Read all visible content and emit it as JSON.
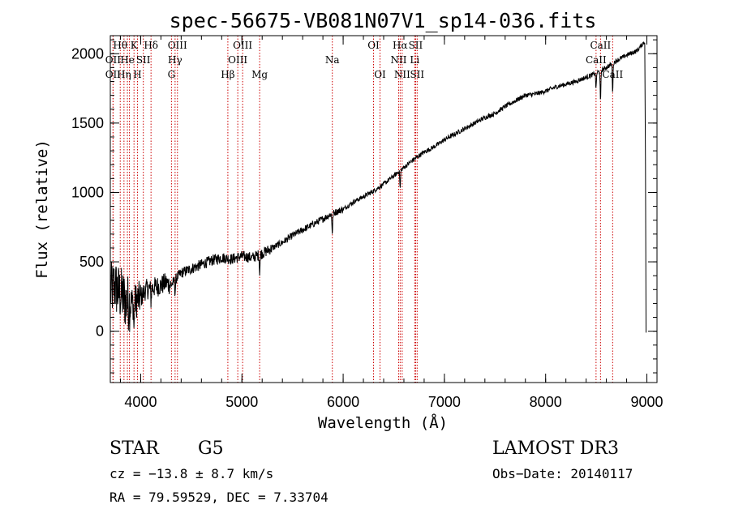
{
  "chart_data": {
    "type": "line",
    "title": "spec-56675-VB081N07V1_sp14-036.fits",
    "xlabel": "Wavelength (Å)",
    "ylabel": "Flux (relative)",
    "xlim": [
      3700,
      9100
    ],
    "ylim": [
      -370,
      2130
    ],
    "x_ticks": [
      4000,
      5000,
      6000,
      7000,
      8000,
      9000
    ],
    "x_tick_labels": [
      "4000",
      "5000",
      "6000",
      "7000",
      "8000",
      "9000"
    ],
    "y_ticks": [
      0,
      500,
      1000,
      1500,
      2000
    ],
    "y_tick_labels": [
      "0",
      "500",
      "1000",
      "1500",
      "2000"
    ],
    "x_minor_step": 200,
    "y_minor_step": 100,
    "series": [
      {
        "name": "Flux",
        "x": [
          3700,
          3740,
          3780,
          3820,
          3860,
          3900,
          3950,
          4000,
          4050,
          4100,
          4150,
          4200,
          4250,
          4300,
          4350,
          4400,
          4500,
          4600,
          4700,
          4800,
          4900,
          5000,
          5100,
          5200,
          5300,
          5400,
          5500,
          5600,
          5700,
          5800,
          5900,
          6000,
          6100,
          6200,
          6300,
          6400,
          6500,
          6600,
          6700,
          6800,
          6900,
          7000,
          7100,
          7200,
          7300,
          7400,
          7500,
          7600,
          7700,
          7800,
          7900,
          8000,
          8100,
          8200,
          8300,
          8400,
          8500,
          8600,
          8700,
          8800,
          8900,
          8980
        ],
        "y": [
          280,
          330,
          280,
          250,
          210,
          200,
          220,
          240,
          300,
          310,
          320,
          330,
          350,
          330,
          380,
          420,
          450,
          480,
          510,
          530,
          520,
          540,
          530,
          560,
          600,
          640,
          690,
          730,
          770,
          810,
          850,
          880,
          930,
          970,
          1010,
          1060,
          1120,
          1180,
          1240,
          1290,
          1330,
          1380,
          1420,
          1460,
          1500,
          1540,
          1570,
          1620,
          1660,
          1700,
          1710,
          1730,
          1760,
          1780,
          1800,
          1830,
          1860,
          1900,
          1950,
          1990,
          2020,
          2090
        ]
      }
    ],
    "absorption_features": [
      {
        "x": 3934,
        "depth": 200
      },
      {
        "x": 4102,
        "depth": 90
      },
      {
        "x": 4340,
        "depth": 90
      },
      {
        "x": 5175,
        "depth": 120
      },
      {
        "x": 5893,
        "depth": 140
      },
      {
        "x": 6563,
        "depth": 130
      },
      {
        "x": 8498,
        "depth": 110
      },
      {
        "x": 8542,
        "depth": 230
      },
      {
        "x": 8662,
        "depth": 200
      }
    ],
    "spectral_lines": [
      {
        "x": 3727,
        "label": "OII",
        "row": 2
      },
      {
        "x": 3727,
        "label": "OII",
        "row": 1
      },
      {
        "x": 3798,
        "label": "Hθ",
        "row": 0
      },
      {
        "x": 3835,
        "label": "Hη",
        "row": 2
      },
      {
        "x": 3869,
        "label": "He",
        "row": 1
      },
      {
        "x": 3889,
        "label": "",
        "row": -1
      },
      {
        "x": 3934,
        "label": "K",
        "row": 0
      },
      {
        "x": 3968,
        "label": "H",
        "row": 2
      },
      {
        "x": 4026,
        "label": "SII",
        "row": 1
      },
      {
        "x": 4102,
        "label": "Hδ",
        "row": 0
      },
      {
        "x": 4304,
        "label": "G",
        "row": 2
      },
      {
        "x": 4340,
        "label": "Hγ",
        "row": 1
      },
      {
        "x": 4363,
        "label": "OIII",
        "row": 0
      },
      {
        "x": 4861,
        "label": "Hβ",
        "row": 2
      },
      {
        "x": 4959,
        "label": "OIII",
        "row": 1
      },
      {
        "x": 5007,
        "label": "OIII",
        "row": 0
      },
      {
        "x": 5175,
        "label": "Mg",
        "row": 2
      },
      {
        "x": 5893,
        "label": "Na",
        "row": 1
      },
      {
        "x": 6300,
        "label": "OI",
        "row": 0
      },
      {
        "x": 6364,
        "label": "OI",
        "row": 2
      },
      {
        "x": 6548,
        "label": "NII",
        "row": 1
      },
      {
        "x": 6563,
        "label": "Hα",
        "row": 0
      },
      {
        "x": 6583,
        "label": "NII",
        "row": 2
      },
      {
        "x": 6707,
        "label": "Li",
        "row": 1
      },
      {
        "x": 6716,
        "label": "SII",
        "row": 0
      },
      {
        "x": 6731,
        "label": "SII",
        "row": 2
      },
      {
        "x": 8498,
        "label": "CaII",
        "row": 1
      },
      {
        "x": 8542,
        "label": "CaII",
        "row": 0
      },
      {
        "x": 8662,
        "label": "CaII",
        "row": 2
      }
    ]
  },
  "caption": {
    "object_type": "STAR",
    "subclass": "G5",
    "cz": "cz = −13.8 ± 8.7 km/s",
    "coords": "RA =  79.59529, DEC =   7.33704",
    "survey": "LAMOST DR3",
    "obs_date": "Obs−Date: 20140117"
  },
  "colors": {
    "line": "#000000",
    "marker": "#cc0000"
  }
}
